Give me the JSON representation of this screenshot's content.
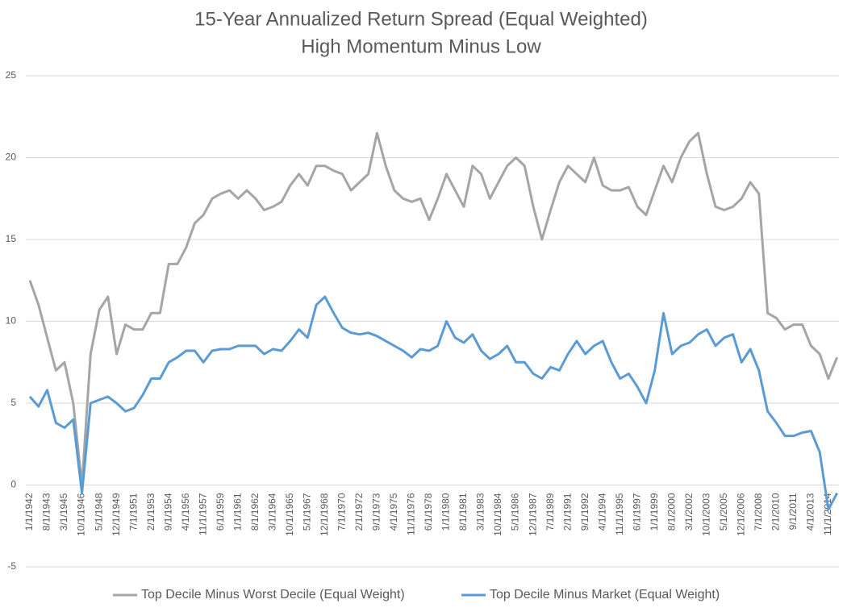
{
  "chart_data": {
    "type": "line",
    "title": "15-Year Annualized Return Spread (Equal Weighted)",
    "subtitle": "High Momentum Minus Low",
    "x": [
      "1/1/1942",
      null,
      "8/1/1943",
      null,
      "3/1/1945",
      null,
      "10/1/1946",
      null,
      "5/1/1948",
      null,
      "12/1/1949",
      null,
      "7/1/1951",
      null,
      "2/1/1953",
      null,
      "9/1/1954",
      null,
      "4/1/1956",
      null,
      "11/1/1957",
      null,
      "6/1/1959",
      null,
      "1/1/1961",
      null,
      "8/1/1962",
      null,
      "3/1/1964",
      null,
      "10/1/1965",
      null,
      "5/1/1967",
      null,
      "12/1/1968",
      null,
      "7/1/1970",
      null,
      "2/1/1972",
      null,
      "9/1/1973",
      null,
      "4/1/1975",
      null,
      "11/1/1976",
      null,
      "6/1/1978",
      null,
      "1/1/1980",
      null,
      "8/1/1981",
      null,
      "3/1/1983",
      null,
      "10/1/1984",
      null,
      "5/1/1986",
      null,
      "12/1/1987",
      null,
      "7/1/1989",
      null,
      "2/1/1991",
      null,
      "9/1/1992",
      null,
      "4/1/1994",
      null,
      "11/1/1995",
      null,
      "6/1/1997",
      null,
      "1/1/1999",
      null,
      "8/1/2000",
      null,
      "3/1/2002",
      null,
      "10/1/2003",
      null,
      "5/1/2005",
      null,
      "12/1/2006",
      null,
      "7/1/2008",
      null,
      "2/1/2010",
      null,
      "9/1/2011",
      null,
      "4/1/2013",
      null,
      "11/1/2014",
      null
    ],
    "series": [
      {
        "name": "Top Decile Minus Worst Decile (Equal Weight)",
        "color": "#a5a5a5",
        "values": [
          12.5,
          11,
          9,
          7,
          7.5,
          5,
          0,
          8,
          10.7,
          11.5,
          8,
          9.8,
          9.5,
          9.5,
          10.5,
          10.5,
          13.5,
          13.5,
          14.5,
          16,
          16.5,
          17.5,
          17.8,
          18,
          17.5,
          18,
          17.5,
          16.8,
          17,
          17.3,
          18.3,
          19,
          18.3,
          19.5,
          19.5,
          19.2,
          19,
          18,
          18.5,
          19,
          21.5,
          19.5,
          18,
          17.5,
          17.3,
          17.5,
          16.2,
          17.5,
          19,
          18,
          17,
          19.5,
          19,
          17.5,
          18.5,
          19.5,
          20,
          19.5,
          17,
          15,
          16.8,
          18.5,
          19.5,
          19,
          18.5,
          20,
          18.3,
          18,
          18,
          18.2,
          17,
          16.5,
          18,
          19.5,
          18.5,
          20,
          21,
          21.5,
          19,
          17,
          16.8,
          17,
          17.5,
          18.5,
          17.8,
          10.5,
          10.2,
          9.5,
          9.8,
          9.8,
          8.5,
          8,
          6.5,
          7.8
        ]
      },
      {
        "name": "Top Decile Minus Market (Equal Weight)",
        "color": "#5b9bd5",
        "values": [
          5.4,
          4.8,
          5.8,
          3.8,
          3.5,
          4,
          -0.5,
          5,
          5.2,
          5.4,
          5,
          4.5,
          4.7,
          5.5,
          6.5,
          6.5,
          7.5,
          7.8,
          8.2,
          8.2,
          7.5,
          8.2,
          8.3,
          8.3,
          8.5,
          8.5,
          8.5,
          8,
          8.3,
          8.2,
          8.8,
          9.5,
          9,
          11,
          11.5,
          10.5,
          9.6,
          9.3,
          9.2,
          9.3,
          9.1,
          8.8,
          8.5,
          8.2,
          7.8,
          8.3,
          8.2,
          8.5,
          10,
          9,
          8.7,
          9.2,
          8.2,
          7.7,
          8,
          8.5,
          7.5,
          7.5,
          6.8,
          6.5,
          7.2,
          7,
          8,
          8.8,
          8,
          8.5,
          8.8,
          7.5,
          6.5,
          6.8,
          6,
          5,
          7,
          10.5,
          8,
          8.5,
          8.7,
          9.2,
          9.5,
          8.5,
          9,
          9.2,
          7.5,
          8.3,
          7,
          4.5,
          3.8,
          3,
          3,
          3.2,
          3.3,
          2,
          -1.5,
          -0.5
        ]
      }
    ],
    "ylim": [
      -5,
      25
    ],
    "yticks": [
      -5,
      0,
      5,
      10,
      15,
      20,
      25
    ],
    "grid": true,
    "legend": "bottom"
  }
}
